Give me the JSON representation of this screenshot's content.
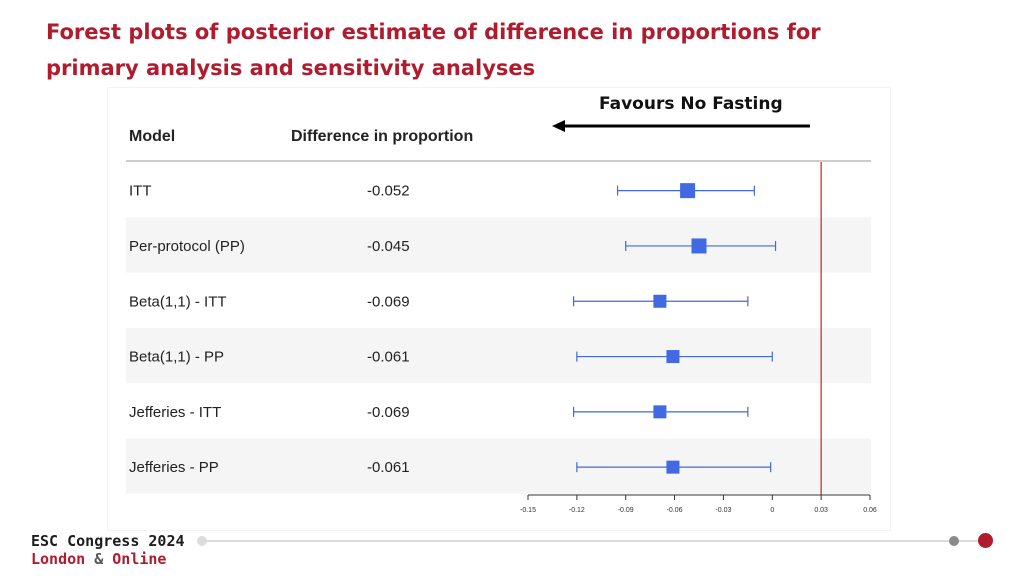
{
  "slide": {
    "title_line1": "Forest plots of posterior estimate of difference in proportions for",
    "title_line2": "primary analysis and sensitivity analyses",
    "favours_label": "Favours No Fasting",
    "footer_title": "ESC Congress 2024",
    "footer_city": "London",
    "footer_amp": "&",
    "footer_online": "Online"
  },
  "colors": {
    "title": "#b01c2e",
    "marker": "#4169e1",
    "reference_line": "#cc2222",
    "row_shade": "#f5f5f5"
  },
  "chart_data": {
    "type": "forest",
    "column_headers": [
      "Model",
      "Difference in proportion"
    ],
    "rows": [
      {
        "model": "ITT",
        "label": "-0.052",
        "estimate": -0.052,
        "lower": -0.095,
        "upper": -0.011
      },
      {
        "model": "Per-protocol (PP)",
        "label": "-0.045",
        "estimate": -0.045,
        "lower": -0.09,
        "upper": 0.002
      },
      {
        "model": "Beta(1,1) - ITT",
        "label": "-0.069",
        "estimate": -0.069,
        "lower": -0.122,
        "upper": -0.015
      },
      {
        "model": "Beta(1,1) - PP",
        "label": "-0.061",
        "estimate": -0.061,
        "lower": -0.12,
        "upper": 0.0
      },
      {
        "model": "Jefferies - ITT",
        "label": "-0.069",
        "estimate": -0.069,
        "lower": -0.122,
        "upper": -0.015
      },
      {
        "model": "Jefferies - PP",
        "label": "-0.061",
        "estimate": -0.061,
        "lower": -0.12,
        "upper": -0.001
      }
    ],
    "xlim": [
      -0.15,
      0.06
    ],
    "xticks": [
      -0.15,
      -0.12,
      -0.09,
      -0.06,
      -0.03,
      0,
      0.03,
      0.06
    ],
    "xtick_labels": [
      "-0.15",
      "-0.12",
      "-0.09",
      "-0.06",
      "-0.03",
      "0",
      "0.03",
      "0.06"
    ],
    "reference_line": 0.03,
    "grid": false
  }
}
